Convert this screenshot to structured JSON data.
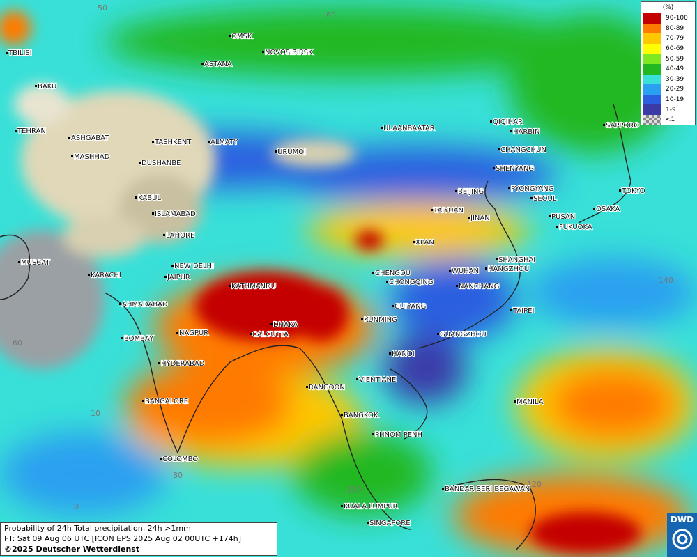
{
  "map": {
    "info": [
      "Probability of 24h Total precipitation, 24h >1mm",
      "FT: Sat 09 Aug 06 UTC [ICON EPS 2025 Aug 02 00UTC +174h]",
      "©2025 Deutscher Wetterdienst"
    ],
    "logo": "DWD",
    "legend": {
      "title": "(%)",
      "items": [
        {
          "label": "90-100",
          "color": "#c40000"
        },
        {
          "label": "80-89",
          "color": "#ff7a00"
        },
        {
          "label": "70-79",
          "color": "#ffc800"
        },
        {
          "label": "60-69",
          "color": "#ffff00"
        },
        {
          "label": "50-59",
          "color": "#7ee820"
        },
        {
          "label": "40-49",
          "color": "#22b822"
        },
        {
          "label": "30-39",
          "color": "#38e0d8"
        },
        {
          "label": "20-29",
          "color": "#2aa0f0"
        },
        {
          "label": "10-19",
          "color": "#2c5fe0"
        },
        {
          "label": "1-9",
          "color": "#3b3ba8"
        },
        {
          "label": "<1",
          "color": "#bbbbbb"
        }
      ]
    },
    "graticule_labels": [
      "50",
      "60",
      "140",
      "60",
      "10",
      "80",
      "0",
      "100",
      "120"
    ],
    "cities": [
      "TBILISI",
      "BAKU",
      "TEHRAN",
      "ASHGABAT",
      "MASHHAD",
      "TASHKENT",
      "ALMATY",
      "DUSHANBE",
      "URUMQI",
      "KABUL",
      "ISLAMABAD",
      "LAHORE",
      "NEW DELHI",
      "JAIPUR",
      "MUSCAT",
      "KARACHI",
      "AHMADABAD",
      "KATHMANDU",
      "DHAKA",
      "CALCUTTA",
      "NAGPUR",
      "BOMBAY",
      "HYDERABAD",
      "BANGALORE",
      "COLOMBO",
      "RANGOON",
      "VIENTIANE",
      "HANOI",
      "BANGKOK",
      "PHNOM PENH",
      "KUALA LUMPUR",
      "SINGAPORE",
      "BANDAR SERI BEGAWAN",
      "MANILA",
      "OMSK",
      "NOVOSIBIRSK",
      "ASTANA",
      "ULAANBAATAR",
      "QIQIHAR",
      "HARBIN",
      "CHANGCHUN",
      "SHENYANG",
      "PYONGYANG",
      "SEOUL",
      "PUSAN",
      "FUKUOKA",
      "BEIJING",
      "TAIYUAN",
      "JINAN",
      "XI'AN",
      "CHENGDU",
      "CHONGQING",
      "WUHAN",
      "SHANGHAI",
      "HANGZHOU",
      "NANCHANG",
      "TAIPEI",
      "GUIYANG",
      "KUNMING",
      "GUANGZHOU",
      "SAPPORO",
      "TOKYO",
      "OSAKA"
    ]
  }
}
